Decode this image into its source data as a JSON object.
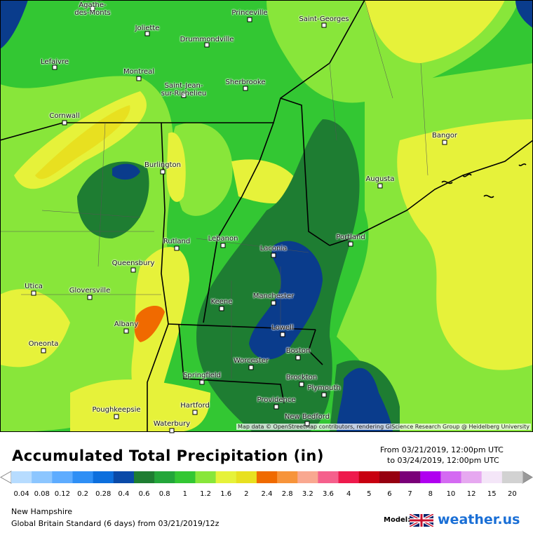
{
  "map": {
    "cities": [
      "Princeville",
      "Saint-Georges",
      "Joliette",
      "Drummondville",
      "Sainte-\nAgathe-\ndes-Monts",
      "Lefaivre",
      "Montreal",
      "Saint-Jean-\nsur-Richelieu",
      "Sherbrooke",
      "Cornwall",
      "Bangor",
      "Burlington",
      "Augusta",
      "Lebanon",
      "Portland",
      "Rutland",
      "Laconia",
      "Queensbury",
      "Utica",
      "Gloversville",
      "Manchester",
      "Keene",
      "Albany",
      "Lowell",
      "Oneonta",
      "Boston",
      "Worcester",
      "Springfield",
      "Brockton",
      "Plymouth",
      "Providence",
      "Hartford",
      "Poughkeepsie",
      "New Bedford",
      "Waterbury"
    ],
    "attribution": "Map data © OpenStreetMap contributors, rendering GIScience Research Group @ Heidelberg University"
  },
  "legend": {
    "title": "Accumulated Total Precipitation (in)",
    "from": "From 03/21/2019, 12:00pm UTC",
    "to": "to 03/24/2019, 12:00pm UTC",
    "labels": [
      0.04,
      0.08,
      0.12,
      0.2,
      0.28,
      0.4,
      0.6,
      0.8,
      1,
      1.2,
      1.6,
      2,
      2.4,
      2.8,
      3.2,
      3.6,
      4,
      5,
      6,
      7,
      8,
      10,
      12,
      15,
      20
    ],
    "colors": [
      "#b7dcff",
      "#8cc6ff",
      "#5eacff",
      "#2f8ff5",
      "#0d6fdd",
      "#0a4aa8",
      "#1e7d32",
      "#23a63a",
      "#33c733",
      "#88e63a",
      "#e6f23a",
      "#e8e020",
      "#f06a00",
      "#f7943a",
      "#f9a890",
      "#f5608c",
      "#ee1a4c",
      "#c80010",
      "#960010",
      "#7a0078",
      "#b000f0",
      "#d46af2",
      "#e6a8f0",
      "#f4e6f8",
      "#d2d2d2"
    ]
  },
  "footer": {
    "region": "New Hampshire",
    "model_run": "Global Britain Standard (6 days) from 03/21/2019/12z",
    "model_label": "Model:",
    "brand": "weather.us"
  }
}
